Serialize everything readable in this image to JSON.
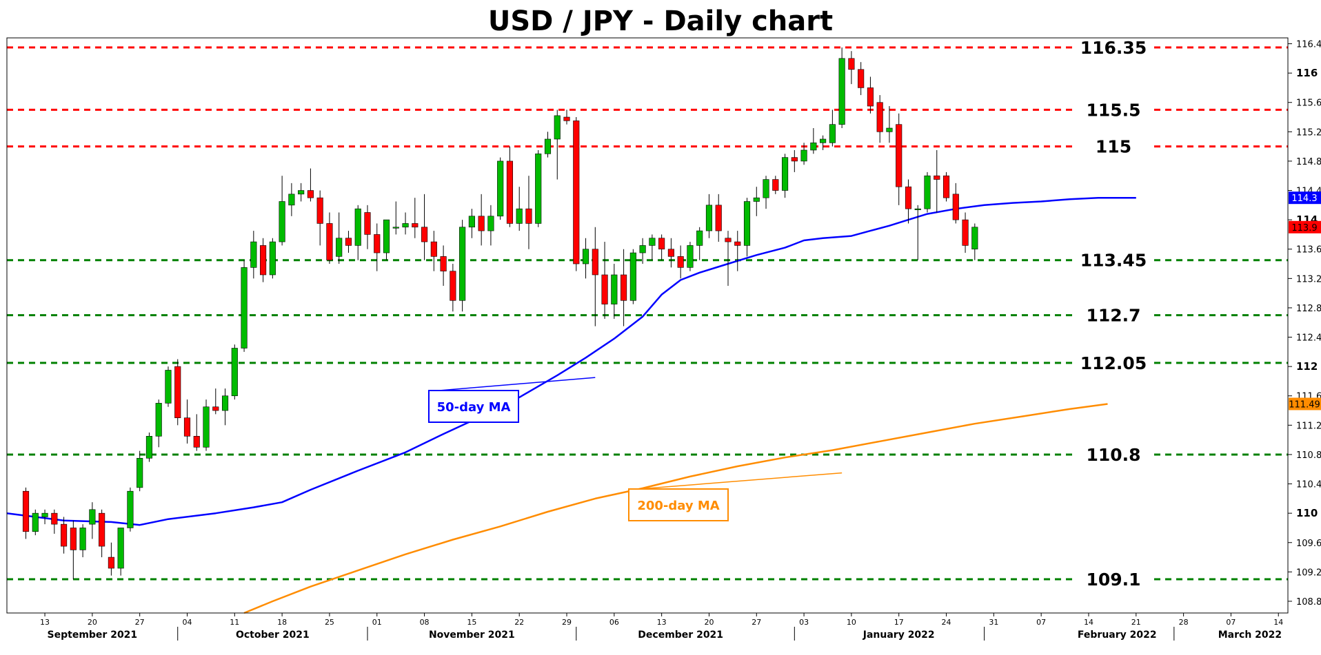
{
  "chart_data": {
    "type": "candlestick",
    "title": "USD / JPY - Daily chart",
    "ylim": [
      108.64,
      116.48
    ],
    "y_ticks": [
      {
        "value": 116.4,
        "label": "116.4",
        "bold": false
      },
      {
        "value": 116.0,
        "label": "116",
        "bold": true
      },
      {
        "value": 115.6,
        "label": "115.6",
        "bold": false
      },
      {
        "value": 115.2,
        "label": "115.2",
        "bold": false
      },
      {
        "value": 114.8,
        "label": "114.8",
        "bold": false
      },
      {
        "value": 114.4,
        "label": "114.4",
        "bold": false
      },
      {
        "value": 114.0,
        "label": "114",
        "bold": true
      },
      {
        "value": 113.6,
        "label": "113.6",
        "bold": false
      },
      {
        "value": 113.2,
        "label": "113.2",
        "bold": false
      },
      {
        "value": 112.8,
        "label": "112.8",
        "bold": false
      },
      {
        "value": 112.4,
        "label": "112.4",
        "bold": false
      },
      {
        "value": 112.0,
        "label": "112",
        "bold": true
      },
      {
        "value": 111.6,
        "label": "111.6",
        "bold": false
      },
      {
        "value": 111.2,
        "label": "111.2",
        "bold": false
      },
      {
        "value": 110.8,
        "label": "110.8",
        "bold": false
      },
      {
        "value": 110.4,
        "label": "110.4",
        "bold": false
      },
      {
        "value": 110.0,
        "label": "110",
        "bold": true
      },
      {
        "value": 109.6,
        "label": "109.6",
        "bold": false
      },
      {
        "value": 109.2,
        "label": "109.2",
        "bold": false
      },
      {
        "value": 108.8,
        "label": "108.8",
        "bold": false
      }
    ],
    "x_ticks": [
      {
        "i": 2,
        "label": "13"
      },
      {
        "i": 7,
        "label": "20"
      },
      {
        "i": 12,
        "label": "27"
      },
      {
        "i": 17,
        "label": "04"
      },
      {
        "i": 22,
        "label": "11"
      },
      {
        "i": 27,
        "label": "18"
      },
      {
        "i": 32,
        "label": "25"
      },
      {
        "i": 37,
        "label": "01"
      },
      {
        "i": 42,
        "label": "08"
      },
      {
        "i": 47,
        "label": "15"
      },
      {
        "i": 52,
        "label": "22"
      },
      {
        "i": 57,
        "label": "29"
      },
      {
        "i": 62,
        "label": "06"
      },
      {
        "i": 67,
        "label": "13"
      },
      {
        "i": 72,
        "label": "20"
      },
      {
        "i": 77,
        "label": "27"
      },
      {
        "i": 82,
        "label": "03"
      },
      {
        "i": 87,
        "label": "10"
      },
      {
        "i": 92,
        "label": "17"
      },
      {
        "i": 97,
        "label": "24"
      },
      {
        "i": 102,
        "label": "31"
      },
      {
        "i": 107,
        "label": "07"
      },
      {
        "i": 112,
        "label": "14"
      },
      {
        "i": 117,
        "label": "21"
      },
      {
        "i": 122,
        "label": "28"
      },
      {
        "i": 127,
        "label": "07"
      },
      {
        "i": 132,
        "label": "14"
      }
    ],
    "months": [
      {
        "label": "September 2021",
        "i": 7,
        "sep": 16
      },
      {
        "label": "October 2021",
        "i": 26,
        "sep": 36
      },
      {
        "label": "November 2021",
        "i": 47,
        "sep": 58
      },
      {
        "label": "December 2021",
        "i": 69,
        "sep": 81
      },
      {
        "label": "January 2022",
        "i": 92,
        "sep": 101
      },
      {
        "label": "February 2022",
        "i": 115,
        "sep": 121
      },
      {
        "label": "March 2022",
        "i": 129,
        "sep": null
      }
    ],
    "x_range": [
      -2,
      133
    ],
    "candles": [
      {
        "o": 110.3,
        "h": 110.35,
        "l": 109.65,
        "c": 109.75
      },
      {
        "o": 109.75,
        "h": 110.05,
        "l": 109.7,
        "c": 110.0
      },
      {
        "o": 109.95,
        "h": 110.05,
        "l": 109.85,
        "c": 110.0
      },
      {
        "o": 110.0,
        "h": 110.05,
        "l": 109.72,
        "c": 109.85
      },
      {
        "o": 109.85,
        "h": 109.95,
        "l": 109.45,
        "c": 109.55
      },
      {
        "o": 109.8,
        "h": 109.9,
        "l": 109.1,
        "c": 109.5
      },
      {
        "o": 109.5,
        "h": 109.85,
        "l": 109.4,
        "c": 109.8
      },
      {
        "o": 109.85,
        "h": 110.15,
        "l": 109.65,
        "c": 110.05
      },
      {
        "o": 110.0,
        "h": 110.05,
        "l": 109.4,
        "c": 109.55
      },
      {
        "o": 109.4,
        "h": 109.6,
        "l": 109.15,
        "c": 109.25
      },
      {
        "o": 109.25,
        "h": 109.8,
        "l": 109.15,
        "c": 109.8
      },
      {
        "o": 109.8,
        "h": 110.35,
        "l": 109.75,
        "c": 110.3
      },
      {
        "o": 110.35,
        "h": 110.85,
        "l": 110.3,
        "c": 110.75
      },
      {
        "o": 110.75,
        "h": 111.1,
        "l": 110.7,
        "c": 111.05
      },
      {
        "o": 111.05,
        "h": 111.55,
        "l": 110.9,
        "c": 111.5
      },
      {
        "o": 111.5,
        "h": 112.0,
        "l": 111.45,
        "c": 111.95
      },
      {
        "o": 112.0,
        "h": 112.1,
        "l": 111.2,
        "c": 111.3
      },
      {
        "o": 111.3,
        "h": 111.55,
        "l": 110.95,
        "c": 111.05
      },
      {
        "o": 111.05,
        "h": 111.35,
        "l": 110.85,
        "c": 110.9
      },
      {
        "o": 110.9,
        "h": 111.55,
        "l": 110.85,
        "c": 111.45
      },
      {
        "o": 111.45,
        "h": 111.7,
        "l": 111.35,
        "c": 111.4
      },
      {
        "o": 111.4,
        "h": 111.7,
        "l": 111.2,
        "c": 111.6
      },
      {
        "o": 111.6,
        "h": 112.3,
        "l": 111.55,
        "c": 112.25
      },
      {
        "o": 112.25,
        "h": 113.45,
        "l": 112.2,
        "c": 113.35
      },
      {
        "o": 113.35,
        "h": 113.85,
        "l": 113.2,
        "c": 113.7
      },
      {
        "o": 113.65,
        "h": 113.75,
        "l": 113.15,
        "c": 113.25
      },
      {
        "o": 113.25,
        "h": 113.75,
        "l": 113.2,
        "c": 113.7
      },
      {
        "o": 113.7,
        "h": 114.6,
        "l": 113.65,
        "c": 114.25
      },
      {
        "o": 114.2,
        "h": 114.5,
        "l": 114.05,
        "c": 114.35
      },
      {
        "o": 114.35,
        "h": 114.5,
        "l": 114.25,
        "c": 114.4
      },
      {
        "o": 114.4,
        "h": 114.7,
        "l": 114.25,
        "c": 114.3
      },
      {
        "o": 114.3,
        "h": 114.4,
        "l": 113.65,
        "c": 113.95
      },
      {
        "o": 113.95,
        "h": 114.1,
        "l": 113.4,
        "c": 113.45
      },
      {
        "o": 113.5,
        "h": 114.1,
        "l": 113.4,
        "c": 113.75
      },
      {
        "o": 113.75,
        "h": 113.85,
        "l": 113.55,
        "c": 113.65
      },
      {
        "o": 113.65,
        "h": 114.2,
        "l": 113.45,
        "c": 114.15
      },
      {
        "o": 114.1,
        "h": 114.2,
        "l": 113.6,
        "c": 113.8
      },
      {
        "o": 113.8,
        "h": 113.95,
        "l": 113.3,
        "c": 113.55
      },
      {
        "o": 113.55,
        "h": 114.0,
        "l": 113.45,
        "c": 114.0
      },
      {
        "o": 113.9,
        "h": 114.25,
        "l": 113.8,
        "c": 113.9
      },
      {
        "o": 113.9,
        "h": 114.1,
        "l": 113.8,
        "c": 113.95
      },
      {
        "o": 113.95,
        "h": 114.3,
        "l": 113.75,
        "c": 113.9
      },
      {
        "o": 113.9,
        "h": 114.35,
        "l": 113.45,
        "c": 113.7
      },
      {
        "o": 113.7,
        "h": 113.85,
        "l": 113.3,
        "c": 113.5
      },
      {
        "o": 113.5,
        "h": 113.65,
        "l": 113.1,
        "c": 113.3
      },
      {
        "o": 113.3,
        "h": 113.4,
        "l": 112.75,
        "c": 112.9
      },
      {
        "o": 112.9,
        "h": 114.0,
        "l": 112.75,
        "c": 113.9
      },
      {
        "o": 113.9,
        "h": 114.15,
        "l": 113.75,
        "c": 114.05
      },
      {
        "o": 114.05,
        "h": 114.35,
        "l": 113.65,
        "c": 113.85
      },
      {
        "o": 113.85,
        "h": 114.2,
        "l": 113.65,
        "c": 114.05
      },
      {
        "o": 114.05,
        "h": 114.85,
        "l": 114.0,
        "c": 114.8
      },
      {
        "o": 114.8,
        "h": 115.0,
        "l": 113.9,
        "c": 113.95
      },
      {
        "o": 113.95,
        "h": 114.45,
        "l": 113.85,
        "c": 114.15
      },
      {
        "o": 114.15,
        "h": 114.6,
        "l": 113.6,
        "c": 113.95
      },
      {
        "o": 113.95,
        "h": 114.95,
        "l": 113.9,
        "c": 114.9
      },
      {
        "o": 114.9,
        "h": 115.2,
        "l": 114.85,
        "c": 115.1
      },
      {
        "o": 115.1,
        "h": 115.5,
        "l": 114.55,
        "c": 115.42
      },
      {
        "o": 115.4,
        "h": 115.5,
        "l": 115.3,
        "c": 115.35
      },
      {
        "o": 115.35,
        "h": 115.4,
        "l": 113.3,
        "c": 113.4
      },
      {
        "o": 113.4,
        "h": 113.75,
        "l": 113.2,
        "c": 113.6
      },
      {
        "o": 113.6,
        "h": 113.9,
        "l": 112.55,
        "c": 113.25
      },
      {
        "o": 113.25,
        "h": 113.7,
        "l": 112.65,
        "c": 112.85
      },
      {
        "o": 112.85,
        "h": 113.4,
        "l": 112.65,
        "c": 113.25
      },
      {
        "o": 113.25,
        "h": 113.6,
        "l": 112.55,
        "c": 112.9
      },
      {
        "o": 112.9,
        "h": 113.6,
        "l": 112.85,
        "c": 113.55
      },
      {
        "o": 113.55,
        "h": 113.75,
        "l": 113.4,
        "c": 113.65
      },
      {
        "o": 113.65,
        "h": 113.8,
        "l": 113.45,
        "c": 113.75
      },
      {
        "o": 113.75,
        "h": 113.8,
        "l": 113.45,
        "c": 113.6
      },
      {
        "o": 113.6,
        "h": 113.75,
        "l": 113.35,
        "c": 113.5
      },
      {
        "o": 113.5,
        "h": 113.65,
        "l": 113.2,
        "c": 113.35
      },
      {
        "o": 113.35,
        "h": 113.7,
        "l": 113.3,
        "c": 113.65
      },
      {
        "o": 113.65,
        "h": 113.9,
        "l": 113.45,
        "c": 113.85
      },
      {
        "o": 113.85,
        "h": 114.35,
        "l": 113.75,
        "c": 114.2
      },
      {
        "o": 114.2,
        "h": 114.35,
        "l": 113.7,
        "c": 113.85
      },
      {
        "o": 113.75,
        "h": 113.85,
        "l": 113.1,
        "c": 113.7
      },
      {
        "o": 113.7,
        "h": 113.85,
        "l": 113.3,
        "c": 113.65
      },
      {
        "o": 113.65,
        "h": 114.3,
        "l": 113.5,
        "c": 114.25
      },
      {
        "o": 114.25,
        "h": 114.45,
        "l": 114.05,
        "c": 114.3
      },
      {
        "o": 114.3,
        "h": 114.6,
        "l": 114.15,
        "c": 114.55
      },
      {
        "o": 114.55,
        "h": 114.6,
        "l": 114.35,
        "c": 114.4
      },
      {
        "o": 114.4,
        "h": 114.9,
        "l": 114.3,
        "c": 114.85
      },
      {
        "o": 114.85,
        "h": 114.95,
        "l": 114.65,
        "c": 114.8
      },
      {
        "o": 114.8,
        "h": 115.05,
        "l": 114.75,
        "c": 114.95
      },
      {
        "o": 114.95,
        "h": 115.25,
        "l": 114.9,
        "c": 115.05
      },
      {
        "o": 115.05,
        "h": 115.15,
        "l": 114.95,
        "c": 115.1
      },
      {
        "o": 115.05,
        "h": 115.5,
        "l": 115.0,
        "c": 115.3
      },
      {
        "o": 115.3,
        "h": 116.35,
        "l": 115.25,
        "c": 116.2
      },
      {
        "o": 116.2,
        "h": 116.3,
        "l": 115.85,
        "c": 116.05
      },
      {
        "o": 116.05,
        "h": 116.15,
        "l": 115.7,
        "c": 115.8
      },
      {
        "o": 115.8,
        "h": 115.95,
        "l": 115.45,
        "c": 115.55
      },
      {
        "o": 115.6,
        "h": 115.7,
        "l": 115.05,
        "c": 115.2
      },
      {
        "o": 115.2,
        "h": 115.55,
        "l": 115.05,
        "c": 115.25
      },
      {
        "o": 115.3,
        "h": 115.45,
        "l": 114.2,
        "c": 114.45
      },
      {
        "o": 114.45,
        "h": 114.55,
        "l": 113.95,
        "c": 114.15
      },
      {
        "o": 114.15,
        "h": 114.2,
        "l": 113.45,
        "c": 114.15
      },
      {
        "o": 114.15,
        "h": 114.65,
        "l": 114.1,
        "c": 114.6
      },
      {
        "o": 114.6,
        "h": 114.95,
        "l": 114.1,
        "c": 114.55
      },
      {
        "o": 114.6,
        "h": 114.65,
        "l": 114.25,
        "c": 114.3
      },
      {
        "o": 114.35,
        "h": 114.5,
        "l": 113.95,
        "c": 114.0
      },
      {
        "o": 114.0,
        "h": 114.1,
        "l": 113.55,
        "c": 113.65
      },
      {
        "o": 113.6,
        "h": 113.95,
        "l": 113.45,
        "c": 113.9
      }
    ],
    "ma50": [
      [
        -2,
        110.0
      ],
      [
        4,
        109.9
      ],
      [
        9,
        109.88
      ],
      [
        12,
        109.84
      ],
      [
        15,
        109.92
      ],
      [
        20,
        110.0
      ],
      [
        24,
        110.08
      ],
      [
        27,
        110.15
      ],
      [
        30,
        110.32
      ],
      [
        35,
        110.58
      ],
      [
        40,
        110.83
      ],
      [
        44,
        111.08
      ],
      [
        48,
        111.32
      ],
      [
        52,
        111.58
      ],
      [
        56,
        111.88
      ],
      [
        59,
        112.12
      ],
      [
        62,
        112.38
      ],
      [
        65,
        112.68
      ],
      [
        67,
        112.98
      ],
      [
        69,
        113.18
      ],
      [
        71,
        113.28
      ],
      [
        74,
        113.4
      ],
      [
        77,
        113.52
      ],
      [
        80,
        113.62
      ],
      [
        82,
        113.72
      ],
      [
        84,
        113.75
      ],
      [
        87,
        113.78
      ],
      [
        89,
        113.85
      ],
      [
        91,
        113.92
      ],
      [
        93,
        114.0
      ],
      [
        95,
        114.08
      ],
      [
        98,
        114.15
      ],
      [
        101,
        114.2
      ],
      [
        104,
        114.23
      ],
      [
        107,
        114.25
      ],
      [
        110,
        114.28
      ],
      [
        113,
        114.3
      ],
      [
        117,
        114.3
      ]
    ],
    "ma200": [
      [
        23,
        108.64
      ],
      [
        26,
        108.8
      ],
      [
        30,
        109.0
      ],
      [
        35,
        109.22
      ],
      [
        40,
        109.44
      ],
      [
        45,
        109.64
      ],
      [
        50,
        109.82
      ],
      [
        55,
        110.02
      ],
      [
        60,
        110.2
      ],
      [
        65,
        110.34
      ],
      [
        70,
        110.5
      ],
      [
        75,
        110.64
      ],
      [
        80,
        110.76
      ],
      [
        85,
        110.86
      ],
      [
        90,
        110.98
      ],
      [
        95,
        111.1
      ],
      [
        100,
        111.22
      ],
      [
        105,
        111.32
      ],
      [
        110,
        111.42
      ],
      [
        114,
        111.49
      ]
    ],
    "levels": [
      {
        "value": 116.35,
        "label": "116.35",
        "color": "#ff0000"
      },
      {
        "value": 115.5,
        "label": "115.5",
        "color": "#ff0000"
      },
      {
        "value": 115.0,
        "label": "115",
        "color": "#ff0000"
      },
      {
        "value": 113.45,
        "label": "113.45",
        "color": "#008000"
      },
      {
        "value": 112.7,
        "label": "112.7",
        "color": "#008000"
      },
      {
        "value": 112.05,
        "label": "112.05",
        "color": "#008000"
      },
      {
        "value": 110.8,
        "label": "110.8",
        "color": "#008000"
      },
      {
        "value": 109.1,
        "label": "109.1",
        "color": "#008000"
      }
    ],
    "badges": [
      {
        "value": 114.3,
        "label": "114.3",
        "bg": "#0000ff",
        "fg": "#ffffff"
      },
      {
        "value": 113.9,
        "label": "113.9",
        "bg": "#ff0000",
        "fg": "#000000"
      },
      {
        "value": 111.49,
        "label": "111.49",
        "bg": "#ff8c00",
        "fg": "#000000"
      }
    ],
    "annotations": {
      "ma50": {
        "label": "50-day MA",
        "color": "#0000ff",
        "anchor_i": 60,
        "anchor_v": 111.85
      },
      "ma200": {
        "label": "200-day MA",
        "color": "#ff8c00",
        "anchor_i": 86,
        "anchor_v": 110.55
      }
    },
    "colors": {
      "up": "#00bb00",
      "down": "#ff0000",
      "ma50": "#0000ff",
      "ma200": "#ff8c00",
      "border": "#000000"
    }
  }
}
